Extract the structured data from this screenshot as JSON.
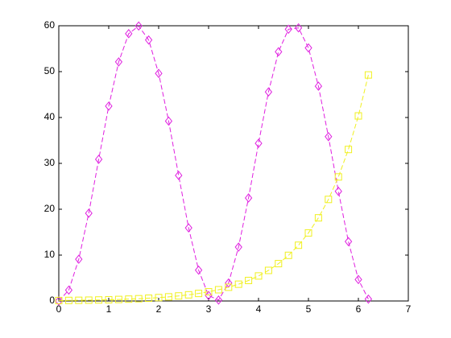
{
  "chart_data": {
    "type": "line",
    "x": [
      0,
      0.2,
      0.4,
      0.6,
      0.8,
      1.0,
      1.2,
      1.4,
      1.6,
      1.8,
      2.0,
      2.2,
      2.4,
      2.6,
      2.8,
      3.0,
      3.2,
      3.4,
      3.6,
      3.8,
      4.0,
      4.2,
      4.4,
      4.6,
      4.8,
      5.0,
      5.2,
      5.4,
      5.6,
      5.8,
      6.0,
      6.2
    ],
    "series": [
      {
        "color": "#e020e0",
        "marker": "diamond",
        "linestyle": "dashed",
        "values": [
          0,
          2.37,
          9.1,
          19.13,
          30.88,
          42.48,
          52.12,
          58.27,
          59.95,
          56.9,
          49.61,
          39.22,
          27.37,
          15.94,
          6.73,
          1.19,
          0.2,
          3.92,
          11.75,
          22.46,
          34.37,
          45.58,
          54.33,
          59.25,
          59.54,
          55.17,
          46.83,
          35.83,
          23.91,
          12.95,
          4.68,
          0.41
        ]
      },
      {
        "color": "#f0f020",
        "marker": "square",
        "linestyle": "dashed",
        "values": [
          0.1,
          0.122,
          0.149,
          0.182,
          0.223,
          0.272,
          0.332,
          0.406,
          0.495,
          0.605,
          0.739,
          0.903,
          1.102,
          1.346,
          1.644,
          2.009,
          2.453,
          2.996,
          3.66,
          4.47,
          5.46,
          6.669,
          8.145,
          9.948,
          12.151,
          14.841,
          18.127,
          22.14,
          27.043,
          33.03,
          40.343,
          49.275
        ]
      }
    ],
    "xlim": [
      0,
      7
    ],
    "xticks": [
      0,
      1,
      2,
      3,
      4,
      5,
      6,
      7
    ],
    "ylim": [
      0,
      60
    ],
    "yticks": [
      0,
      10,
      20,
      30,
      40,
      50,
      60
    ],
    "grid": false
  }
}
